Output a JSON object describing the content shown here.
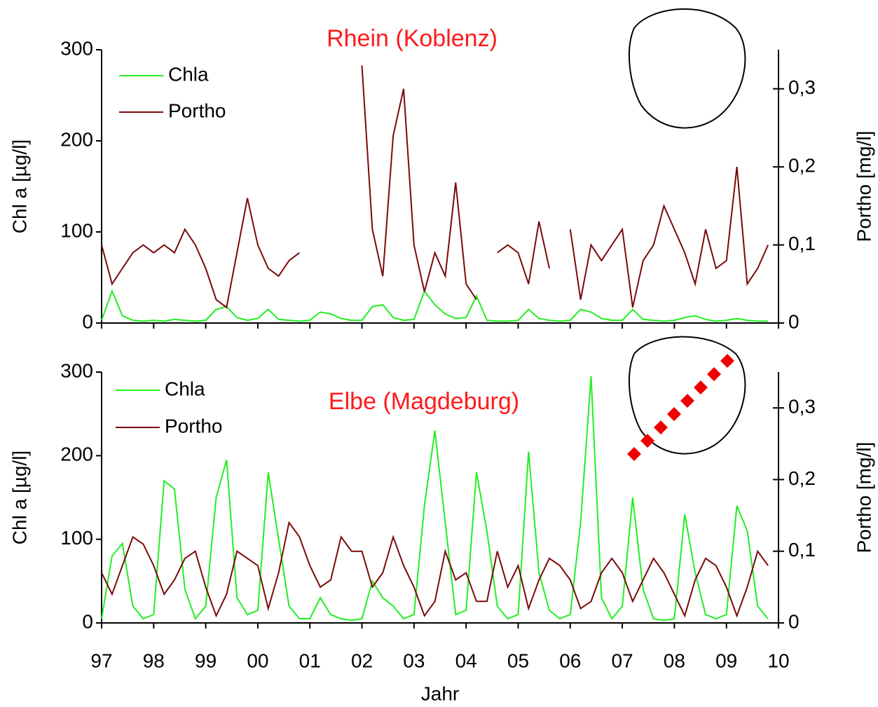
{
  "chart_data": [
    {
      "type": "line",
      "title": "Rhein (Koblenz)",
      "ylabel": "Chl a [µg/l]",
      "y2label": "Portho [mg/l]",
      "legend": "upper left",
      "xlim": [
        1997,
        2010
      ],
      "xticks": [
        1997,
        1998,
        1999,
        2000,
        2001,
        2002,
        2003,
        2004,
        2005,
        2006,
        2007,
        2008,
        2009,
        2010
      ],
      "ylim": [
        0,
        300
      ],
      "yticks": [
        0,
        100,
        200,
        300
      ],
      "y2lim": [
        0,
        0.35
      ],
      "y2ticks": [
        0,
        {
          "value": 0.1,
          "label": "0,1"
        },
        {
          "value": 0.2,
          "label": "0,2"
        },
        {
          "value": 0.3,
          "label": "0,3"
        }
      ],
      "x": [
        1997,
        1997.2,
        1997.4,
        1997.6,
        1997.8,
        1998,
        1998.2,
        1998.4,
        1998.6,
        1998.8,
        1999,
        1999.2,
        1999.4,
        1999.6,
        1999.8,
        2000,
        2000.2,
        2000.4,
        2000.6,
        2000.8,
        2001,
        2001.2,
        2001.4,
        2001.6,
        2001.8,
        2002,
        2002.2,
        2002.4,
        2002.6,
        2002.8,
        2003,
        2003.2,
        2003.4,
        2003.6,
        2003.8,
        2004,
        2004.2,
        2004.4,
        2004.6,
        2004.8,
        2005,
        2005.2,
        2005.4,
        2005.6,
        2005.8,
        2006,
        2006.2,
        2006.4,
        2006.6,
        2006.8,
        2007,
        2007.2,
        2007.4,
        2007.6,
        2007.8,
        2008,
        2008.2,
        2008.4,
        2008.6,
        2008.8,
        2009,
        2009.2,
        2009.4,
        2009.6,
        2009.8
      ],
      "series": [
        {
          "name": "Chla",
          "color": "#22ee22",
          "values": [
            3,
            35,
            8,
            3,
            2,
            3,
            2,
            4,
            3,
            2,
            3,
            15,
            18,
            6,
            3,
            5,
            15,
            4,
            3,
            2,
            3,
            12,
            10,
            5,
            3,
            3,
            18,
            20,
            6,
            3,
            4,
            35,
            20,
            10,
            5,
            6,
            30,
            3,
            2,
            2,
            3,
            15,
            5,
            3,
            2,
            3,
            15,
            12,
            5,
            3,
            3,
            15,
            4,
            3,
            2,
            3,
            6,
            8,
            4,
            2,
            3,
            5,
            3,
            2,
            2
          ]
        },
        {
          "name": "Portho",
          "color": "#7a0a0a",
          "axis": "y2",
          "values": [
            0.1,
            0.05,
            0.07,
            0.09,
            0.1,
            0.09,
            0.1,
            0.09,
            0.12,
            0.1,
            0.07,
            0.03,
            0.02,
            0.09,
            0.16,
            0.1,
            0.07,
            0.06,
            0.08,
            0.09,
            null,
            null,
            null,
            null,
            null,
            0.33,
            0.12,
            0.06,
            0.24,
            0.3,
            0.1,
            0.04,
            0.09,
            0.06,
            0.18,
            0.05,
            0.03,
            null,
            0.09,
            0.1,
            0.09,
            0.05,
            0.13,
            0.07,
            null,
            0.12,
            0.03,
            0.1,
            0.08,
            0.1,
            0.12,
            0.02,
            0.08,
            0.1,
            0.15,
            0.12,
            0.09,
            0.05,
            0.12,
            0.07,
            0.08,
            0.2,
            0.05,
            0.07,
            0.1
          ]
        }
      ]
    },
    {
      "type": "line",
      "title": "Elbe (Magdeburg)",
      "xlabel": "Jahr",
      "ylabel": "Chl a [µg/l]",
      "y2label": "Portho [mg/l]",
      "legend": "upper left",
      "xlim": [
        1997,
        2010
      ],
      "xticks": [
        {
          "value": 1997,
          "label": "97"
        },
        {
          "value": 1998,
          "label": "98"
        },
        {
          "value": 1999,
          "label": "99"
        },
        {
          "value": 2000,
          "label": "00"
        },
        {
          "value": 2001,
          "label": "01"
        },
        {
          "value": 2002,
          "label": "02"
        },
        {
          "value": 2003,
          "label": "03"
        },
        {
          "value": 2004,
          "label": "04"
        },
        {
          "value": 2005,
          "label": "05"
        },
        {
          "value": 2006,
          "label": "06"
        },
        {
          "value": 2007,
          "label": "07"
        },
        {
          "value": 2008,
          "label": "08"
        },
        {
          "value": 2009,
          "label": "09"
        },
        {
          "value": 2010,
          "label": "10"
        }
      ],
      "ylim": [
        0,
        300
      ],
      "yticks": [
        0,
        100,
        200,
        300
      ],
      "y2lim": [
        0,
        0.35
      ],
      "y2ticks": [
        0,
        {
          "value": 0.1,
          "label": "0,1"
        },
        {
          "value": 0.2,
          "label": "0,2"
        },
        {
          "value": 0.3,
          "label": "0,3"
        }
      ],
      "x": [
        1997,
        1997.2,
        1997.4,
        1997.6,
        1997.8,
        1998,
        1998.2,
        1998.4,
        1998.6,
        1998.8,
        1999,
        1999.2,
        1999.4,
        1999.6,
        1999.8,
        2000,
        2000.2,
        2000.4,
        2000.6,
        2000.8,
        2001,
        2001.2,
        2001.4,
        2001.6,
        2001.8,
        2002,
        2002.2,
        2002.4,
        2002.6,
        2002.8,
        2003,
        2003.2,
        2003.4,
        2003.6,
        2003.8,
        2004,
        2004.2,
        2004.4,
        2004.6,
        2004.8,
        2005,
        2005.2,
        2005.4,
        2005.6,
        2005.8,
        2006,
        2006.2,
        2006.4,
        2006.6,
        2006.8,
        2007,
        2007.2,
        2007.4,
        2007.6,
        2007.8,
        2008,
        2008.2,
        2008.4,
        2008.6,
        2008.8,
        2009,
        2009.2,
        2009.4,
        2009.6,
        2009.8
      ],
      "series": [
        {
          "name": "Chla",
          "color": "#22ee22",
          "values": [
            5,
            80,
            95,
            20,
            5,
            10,
            170,
            160,
            40,
            5,
            20,
            150,
            195,
            30,
            10,
            15,
            180,
            100,
            20,
            5,
            5,
            30,
            10,
            5,
            3,
            5,
            50,
            30,
            20,
            5,
            10,
            140,
            230,
            120,
            10,
            15,
            180,
            110,
            20,
            5,
            10,
            205,
            60,
            15,
            5,
            10,
            120,
            295,
            30,
            5,
            20,
            150,
            40,
            5,
            3,
            5,
            130,
            60,
            10,
            5,
            10,
            140,
            110,
            20,
            5
          ]
        },
        {
          "name": "Portho",
          "color": "#7a0a0a",
          "axis": "y2",
          "values": [
            0.07,
            0.04,
            0.08,
            0.12,
            0.11,
            0.08,
            0.04,
            0.06,
            0.09,
            0.1,
            0.05,
            0.01,
            0.04,
            0.1,
            0.09,
            0.08,
            0.02,
            0.07,
            0.14,
            0.12,
            0.08,
            0.05,
            0.06,
            0.12,
            0.1,
            0.1,
            0.05,
            0.07,
            0.12,
            0.08,
            0.05,
            0.01,
            0.03,
            0.1,
            0.06,
            0.07,
            0.03,
            0.03,
            0.1,
            0.05,
            0.08,
            0.02,
            0.06,
            0.09,
            0.08,
            0.06,
            0.02,
            0.03,
            0.07,
            0.09,
            0.07,
            0.03,
            0.06,
            0.09,
            0.07,
            0.04,
            0.01,
            0.06,
            0.09,
            0.08,
            0.05,
            0.01,
            0.05,
            0.1,
            0.08
          ]
        }
      ]
    }
  ]
}
